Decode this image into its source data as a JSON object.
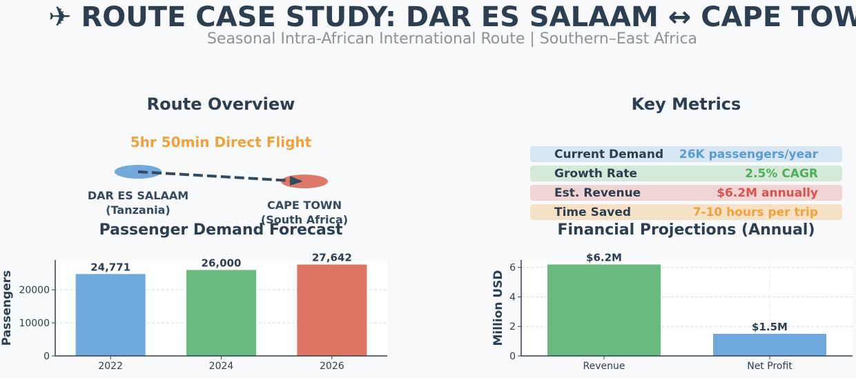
{
  "header": {
    "title": "✈ ROUTE CASE STUDY: DAR ES SALAAM ↔ CAPE TOWN",
    "subtitle": "Seasonal Intra-African International Route | Southern–East Africa"
  },
  "route_overview": {
    "title": "Route Overview",
    "flight_label": "5hr 50min Direct Flight",
    "origin": {
      "name": "DAR ES SALAAM",
      "country": "(Tanzania)",
      "color": "#5b9bd5"
    },
    "destination": {
      "name": "CAPE TOWN",
      "country": "(South Africa)",
      "color": "#d9634f"
    },
    "arrow_color": "#34495e"
  },
  "key_metrics": {
    "title": "Key Metrics",
    "rows": [
      {
        "label": "Current Demand",
        "value": "26K passengers/year",
        "color": "#5b9bd5",
        "bg": "#d6e7f3"
      },
      {
        "label": "Growth Rate",
        "value": "2.5% CAGR",
        "color": "#4caf5a",
        "bg": "#d4e9d8"
      },
      {
        "label": "Est. Revenue",
        "value": "$6.2M annually",
        "color": "#d9534f",
        "bg": "#f1d4d4"
      },
      {
        "label": "Time Saved",
        "value": "7-10 hours per trip",
        "color": "#f0a23a",
        "bg": "#f5e2c6"
      }
    ]
  },
  "chart_data": [
    {
      "type": "bar",
      "title": "Passenger Demand Forecast",
      "xlabel": "",
      "ylabel": "Passengers",
      "categories": [
        "2022",
        "2024",
        "2026"
      ],
      "values": [
        24771,
        26000,
        27642
      ],
      "data_labels": [
        "24,771",
        "26,000",
        "27,642"
      ],
      "colors": [
        "#6fa8dc",
        "#6ab981",
        "#de7564"
      ],
      "ylim": [
        0,
        29000
      ],
      "yticks": [
        0,
        10000,
        20000
      ],
      "grid": true
    },
    {
      "type": "bar",
      "title": "Financial Projections (Annual)",
      "xlabel": "",
      "ylabel": "Million USD",
      "categories": [
        "Revenue",
        "Net Profit"
      ],
      "values": [
        6.2,
        1.5
      ],
      "data_labels": [
        "$6.2M",
        "$1.5M"
      ],
      "colors": [
        "#6ab981",
        "#6fa8dc"
      ],
      "ylim": [
        0,
        6.5
      ],
      "yticks": [
        0,
        2,
        4,
        6
      ],
      "grid": true
    }
  ]
}
